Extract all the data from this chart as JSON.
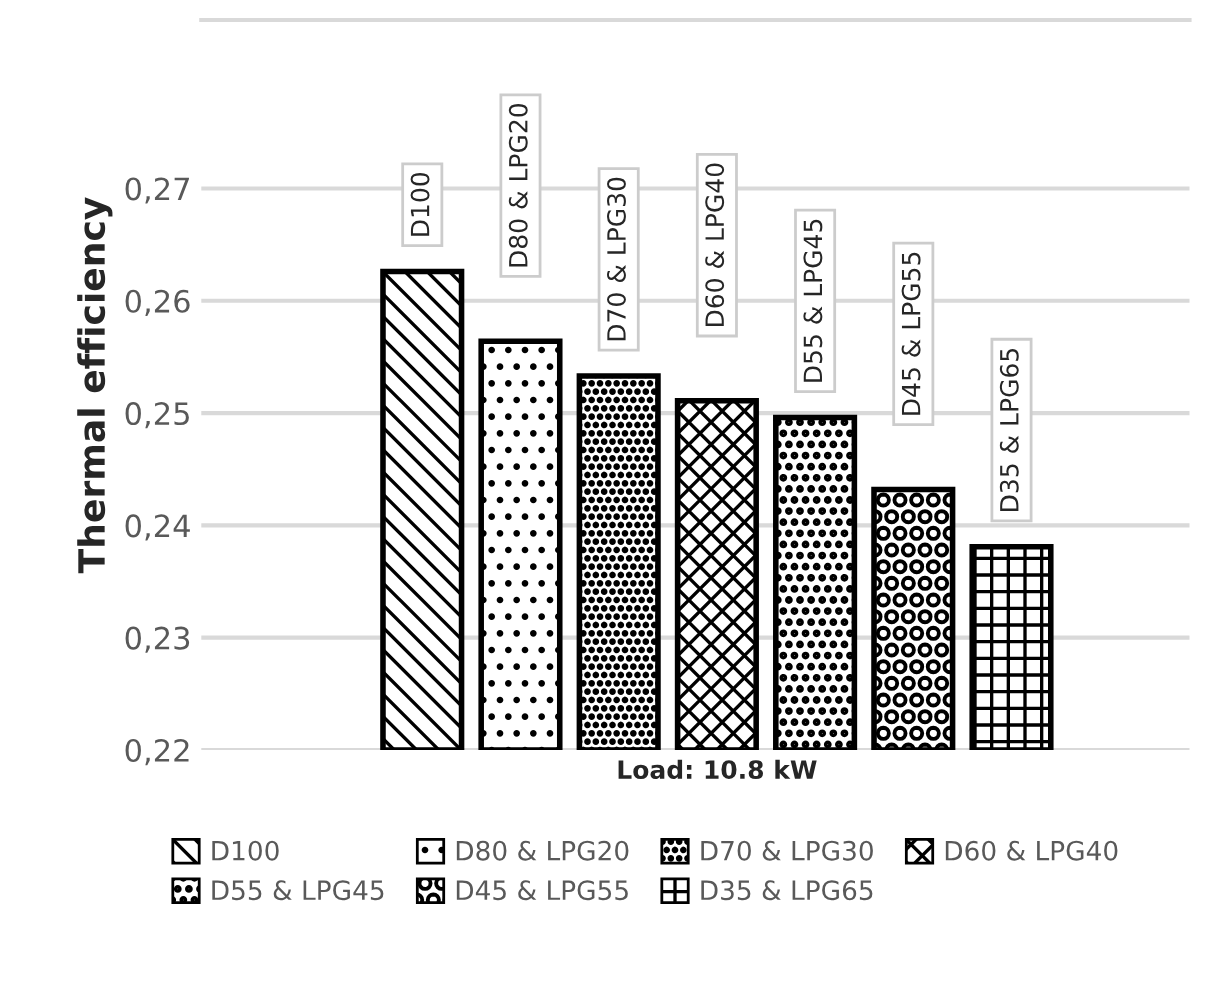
{
  "chart_data": {
    "type": "bar",
    "ylabel": "Thermal efficiency",
    "categories": [
      "Load: 10.8 kW"
    ],
    "series": [
      {
        "name": "D100",
        "color": "#000000",
        "values": [
          0.2626
        ]
      },
      {
        "name": "D80 & LPG20",
        "color": "#000000",
        "values": [
          0.2564
        ]
      },
      {
        "name": "D70 & LPG30",
        "color": "#000000",
        "values": [
          0.2533
        ]
      },
      {
        "name": "D60 & LPG40",
        "color": "#000000",
        "values": [
          0.2511
        ]
      },
      {
        "name": "D55 & LPG45",
        "color": "#000000",
        "values": [
          0.2496
        ]
      },
      {
        "name": "D45 & LPG55",
        "color": "#000000",
        "values": [
          0.2432
        ]
      },
      {
        "name": "D35 & LPG65",
        "color": "#000000",
        "values": [
          0.2381
        ]
      }
    ],
    "ylim": [
      0.22,
      0.285
    ],
    "yticks": [
      {
        "value": 0.22,
        "label": "0,22"
      },
      {
        "value": 0.23,
        "label": "0,23"
      },
      {
        "value": 0.24,
        "label": "0,24"
      },
      {
        "value": 0.25,
        "label": "0,25"
      },
      {
        "value": 0.26,
        "label": "0,26"
      },
      {
        "value": 0.27,
        "label": "0,27"
      }
    ],
    "grid": "y",
    "legend": "bottom"
  }
}
